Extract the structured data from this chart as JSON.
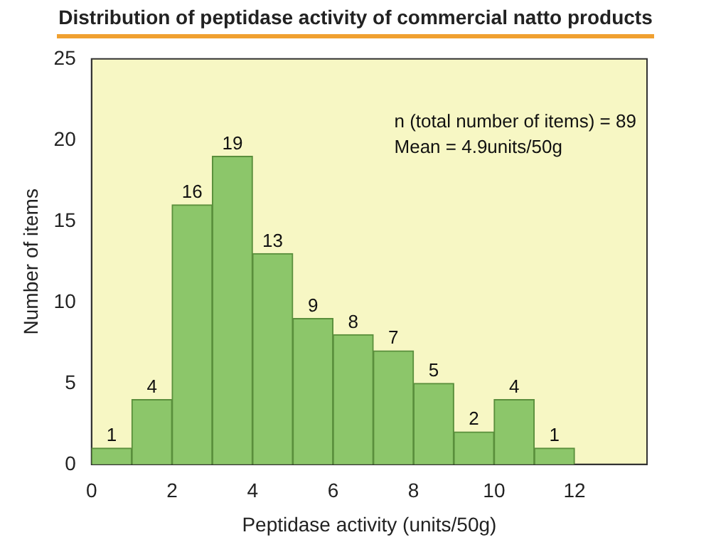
{
  "chart_data": {
    "type": "histogram",
    "title": "Distribution of peptidase activity of commercial natto products",
    "xlabel": "Peptidase activity (units/50g)",
    "ylabel": "Number of items",
    "bins": [
      0,
      1,
      2,
      3,
      4,
      5,
      6,
      7,
      8,
      9,
      10,
      11,
      12
    ],
    "values": [
      1,
      4,
      16,
      19,
      13,
      9,
      8,
      7,
      5,
      2,
      4,
      1
    ],
    "color": "#8cc66a",
    "xlim": [
      0,
      13.8
    ],
    "xticks": [
      0,
      2,
      4,
      6,
      8,
      10,
      12
    ],
    "ylim": [
      0,
      25
    ],
    "yticks": [
      0,
      5,
      10,
      15,
      20,
      25
    ],
    "data_labels": true,
    "grid": false,
    "legend": false,
    "annotations": [
      "n (total number of items) = 89",
      "Mean = 4.9units/50g"
    ]
  }
}
